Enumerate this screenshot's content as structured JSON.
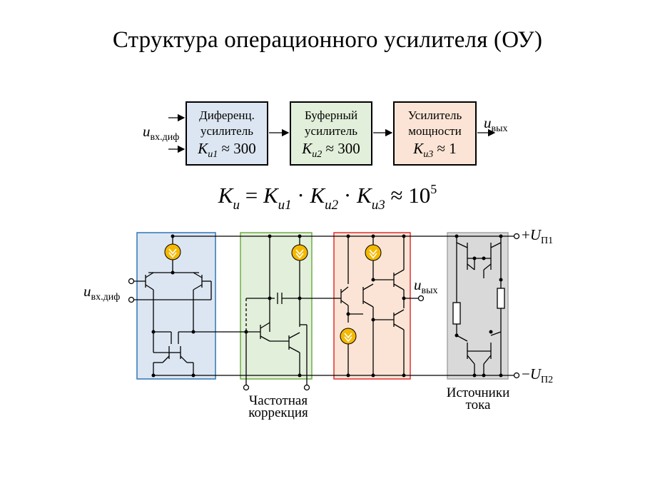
{
  "title": "Структура операционного усилителя (ОУ)",
  "blocks": [
    {
      "line1": "Диференц.",
      "line2": "усилитель",
      "k": "K",
      "ksub": "u1",
      "kval": " ≈ 300"
    },
    {
      "line1": "Буферный",
      "line2": "усилитель",
      "k": "K",
      "ksub": "u2",
      "kval": " ≈ 300"
    },
    {
      "line1": "Усилитель",
      "line2": "мощности",
      "k": "K",
      "ksub": "u3",
      "kval": " ≈ 1"
    }
  ],
  "input_label": {
    "sym": "u",
    "sub": "вх.диф"
  },
  "output_label": {
    "sym": "u",
    "sub": "вых"
  },
  "formula": {
    "k": "K",
    "ksub": "u",
    "eq": " = ",
    "k1sub": "u1",
    "k2sub": "u2",
    "k3sub": "u3",
    "dot": " · ",
    "approx": " ≈ 10",
    "exp": "5"
  },
  "schematic": {
    "input_label": {
      "sym": "u",
      "sub": "вх.диф"
    },
    "output_label": {
      "sym": "u",
      "sub": "вых"
    },
    "vplus": {
      "sign": "+",
      "sym": "U",
      "sub": "П1"
    },
    "vminus": {
      "sign": "−",
      "sym": "U",
      "sub": "П2"
    },
    "caption_correction": [
      "Частотная",
      "коррекция"
    ],
    "caption_sources": [
      "Источники",
      "тока"
    ],
    "colors": {
      "blue_fill": "#dce6f2",
      "blue_border": "#2e75b6",
      "green_fill": "#e2efda",
      "green_border": "#70ad47",
      "red_fill": "#fbe4d5",
      "red_border": "#e03030",
      "gray_fill": "#d9d9d9",
      "gray_border": "#a6a6a6",
      "source_fill": "#f5b800"
    }
  }
}
